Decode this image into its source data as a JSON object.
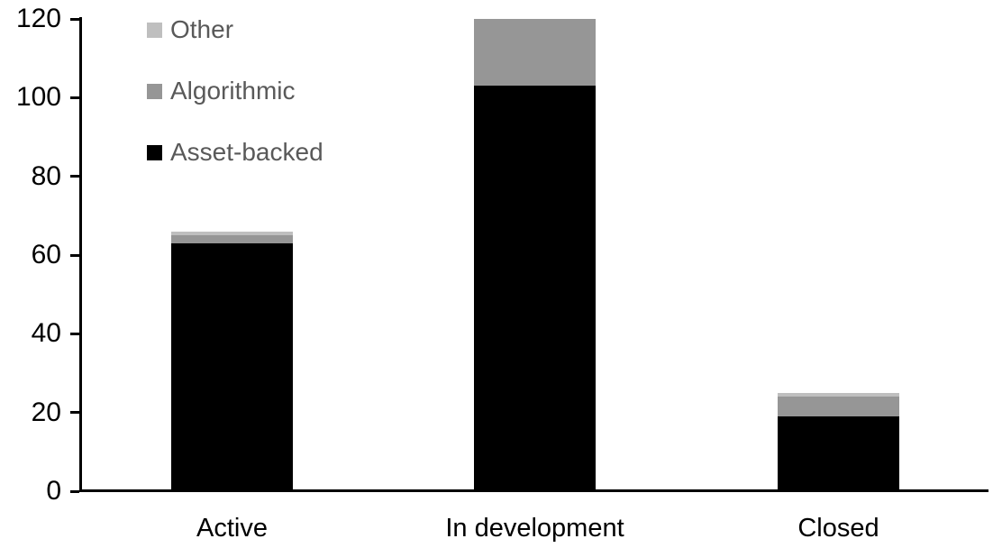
{
  "chart_data": {
    "type": "bar",
    "stacked": true,
    "title": "",
    "xlabel": "",
    "ylabel": "",
    "categories": [
      "Active",
      "In development",
      "Closed"
    ],
    "series": [
      {
        "name": "Asset-backed",
        "color": "#000000",
        "values": [
          63,
          103,
          19
        ]
      },
      {
        "name": "Algorithmic",
        "color": "#969696",
        "values": [
          2,
          17,
          5
        ]
      },
      {
        "name": "Other",
        "color": "#bfbfbf",
        "values": [
          1,
          0,
          1
        ]
      }
    ],
    "stack_totals": [
      66,
      120,
      25
    ],
    "ylim": [
      0,
      120
    ],
    "yticks": [
      0,
      20,
      40,
      60,
      80,
      100,
      120
    ],
    "grid": false,
    "axis_color": "#000000",
    "legend": {
      "position": "top-left",
      "order": [
        "Other",
        "Algorithmic",
        "Asset-backed"
      ],
      "text_color": "#595959"
    }
  }
}
